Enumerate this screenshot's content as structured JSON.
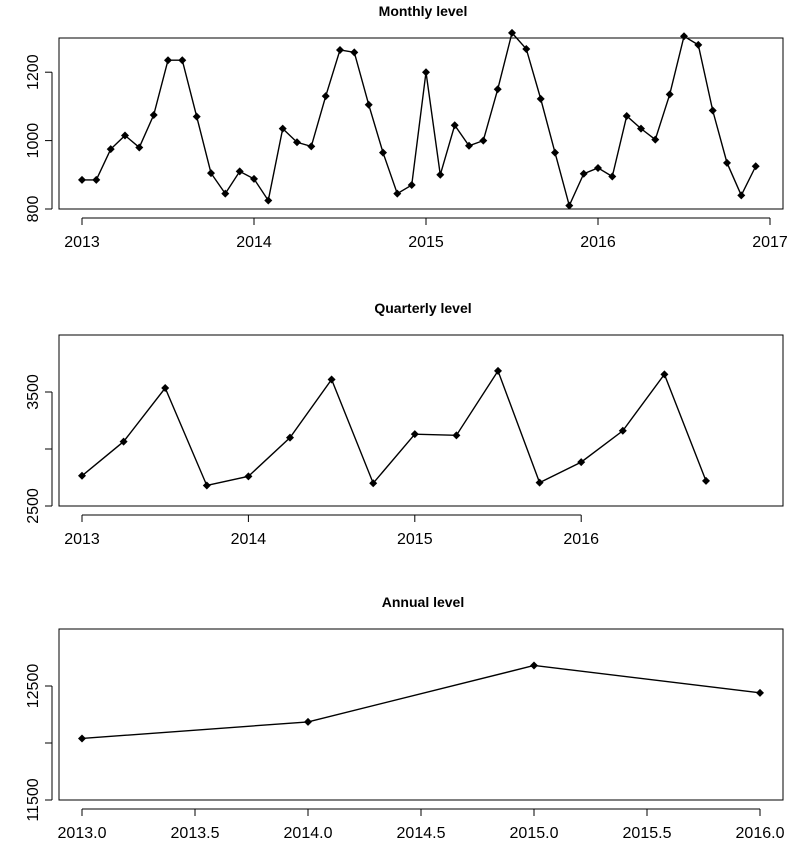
{
  "chart_data": [
    {
      "type": "line",
      "title": "Monthly level",
      "xlabel": "",
      "ylabel": "",
      "xlim": [
        2013,
        2017
      ],
      "ylim": [
        800,
        1300
      ],
      "x_ticks": [
        2013,
        2014,
        2015,
        2016,
        2017
      ],
      "x_tick_labels": [
        "2013",
        "2014",
        "2015",
        "2016",
        "2017"
      ],
      "y_ticks": [
        800,
        1000,
        1200
      ],
      "y_tick_labels": [
        "800",
        "1000",
        "1200"
      ],
      "x": [
        2013.0,
        2013.083,
        2013.167,
        2013.25,
        2013.333,
        2013.417,
        2013.5,
        2013.583,
        2013.667,
        2013.75,
        2013.833,
        2013.917,
        2014.0,
        2014.083,
        2014.167,
        2014.25,
        2014.333,
        2014.417,
        2014.5,
        2014.583,
        2014.667,
        2014.75,
        2014.833,
        2014.917,
        2015.0,
        2015.083,
        2015.167,
        2015.25,
        2015.333,
        2015.417,
        2015.5,
        2015.583,
        2015.667,
        2015.75,
        2015.833,
        2015.917,
        2016.0,
        2016.083,
        2016.167,
        2016.25,
        2016.333,
        2016.417,
        2016.5,
        2016.583,
        2016.667,
        2016.75,
        2016.833,
        2016.917
      ],
      "values": [
        885,
        885,
        975,
        1015,
        980,
        1075,
        1235,
        1235,
        1070,
        905,
        845,
        910,
        888,
        825,
        1035,
        995,
        983,
        1130,
        1265,
        1258,
        1105,
        965,
        845,
        870,
        1200,
        900,
        1045,
        985,
        1000,
        1150,
        1315,
        1268,
        1122,
        965,
        810,
        903,
        920,
        895,
        1072,
        1035,
        1003,
        1135,
        1305,
        1280,
        1088,
        935,
        840,
        925
      ],
      "grid": false,
      "legend": "none"
    },
    {
      "type": "line",
      "title": "Quarterly level",
      "xlabel": "",
      "ylabel": "",
      "xlim": [
        2013,
        2016.75
      ],
      "ylim": [
        2500,
        4000
      ],
      "x_ticks": [
        2013,
        2014,
        2015,
        2016
      ],
      "x_tick_labels": [
        "2013",
        "2014",
        "2015",
        "2016"
      ],
      "y_ticks": [
        2500,
        3000,
        3500
      ],
      "y_tick_labels": [
        "2500",
        "",
        "3500"
      ],
      "x": [
        2013.0,
        2013.25,
        2013.5,
        2013.75,
        2014.0,
        2014.25,
        2014.5,
        2014.75,
        2015.0,
        2015.25,
        2015.5,
        2015.75,
        2016.0,
        2016.25,
        2016.5,
        2016.75
      ],
      "values": [
        2765,
        3065,
        3535,
        2680,
        2760,
        3100,
        3610,
        2700,
        3130,
        3120,
        3685,
        2705,
        2885,
        3160,
        3655,
        2720
      ],
      "grid": false,
      "legend": "none"
    },
    {
      "type": "line",
      "title": "Annual level",
      "xlabel": "",
      "ylabel": "",
      "xlim": [
        2013,
        2016
      ],
      "ylim": [
        11500,
        13000
      ],
      "x_ticks": [
        2013.0,
        2013.5,
        2014.0,
        2014.5,
        2015.0,
        2015.5,
        2016.0
      ],
      "x_tick_labels": [
        "2013.0",
        "2013.5",
        "2014.0",
        "2014.5",
        "2015.0",
        "2015.5",
        "2016.0"
      ],
      "y_ticks": [
        11500,
        12000,
        12500
      ],
      "y_tick_labels": [
        "11500",
        "",
        "12500"
      ],
      "x": [
        2013.0,
        2014.0,
        2015.0,
        2016.0
      ],
      "values": [
        12040,
        12185,
        12680,
        12440
      ],
      "grid": false,
      "legend": "none"
    }
  ]
}
